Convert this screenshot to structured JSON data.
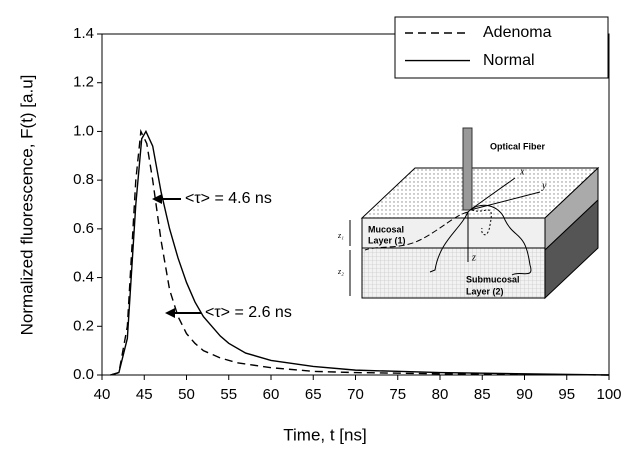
{
  "chart_data": {
    "type": "line",
    "x_label": "Time, t [ns]",
    "y_label": "Normalized fluorescence, F(t) [a.u]",
    "xlim": [
      40,
      100
    ],
    "xticks": [
      40,
      45,
      50,
      55,
      60,
      65,
      70,
      75,
      80,
      85,
      90,
      95,
      100
    ],
    "ylim": [
      0,
      1.4
    ],
    "yticks": [
      {
        "value": 0,
        "label": "0.0"
      },
      {
        "value": 0.2,
        "label": "0.2"
      },
      {
        "value": 0.4,
        "label": "0.4"
      },
      {
        "value": 0.6,
        "label": "0.6"
      },
      {
        "value": 0.8,
        "label": "0.8"
      },
      {
        "value": 1.0,
        "label": "1.0"
      },
      {
        "value": 1.2,
        "label": "1.2"
      },
      {
        "value": 1.4,
        "label": "1.4"
      }
    ],
    "legend": "upper right",
    "series": [
      {
        "name": "Adenoma",
        "color": "#000000",
        "dashed": true,
        "x": [
          41,
          42,
          43,
          44,
          44.6,
          45.3,
          46,
          47,
          48,
          49,
          50,
          51,
          52,
          54,
          56,
          60,
          65,
          70,
          80,
          100
        ],
        "values": [
          0,
          0.01,
          0.2,
          0.8,
          1.0,
          0.95,
          0.8,
          0.55,
          0.35,
          0.24,
          0.17,
          0.13,
          0.1,
          0.07,
          0.05,
          0.03,
          0.015,
          0.01,
          0.005,
          0
        ]
      },
      {
        "name": "Normal",
        "color": "#000000",
        "dashed": false,
        "x": [
          41,
          42,
          43,
          44,
          44.7,
          45.2,
          46,
          47,
          48,
          49,
          50,
          51,
          52,
          53,
          54,
          55,
          57,
          60,
          65,
          70,
          75,
          80,
          90,
          100
        ],
        "values": [
          0,
          0.01,
          0.15,
          0.7,
          0.97,
          1.0,
          0.94,
          0.75,
          0.6,
          0.48,
          0.38,
          0.3,
          0.24,
          0.2,
          0.16,
          0.13,
          0.09,
          0.06,
          0.035,
          0.02,
          0.015,
          0.01,
          0.005,
          0
        ]
      }
    ],
    "annotations": [
      "<τ> = 4.6 ns",
      "<τ> = 2.6 ns"
    ]
  },
  "inset": {
    "labels": [
      "Optical Fiber",
      "x",
      "y",
      "z",
      "Mucosal",
      "Layer (1)",
      "Submucosal",
      "Layer (2)",
      "z₁",
      "z₂"
    ]
  }
}
